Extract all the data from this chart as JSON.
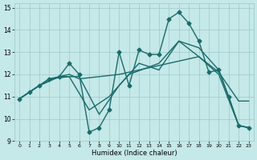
{
  "xlabel": "Humidex (Indice chaleur)",
  "bg_color": "#c5e8e8",
  "grid_color": "#9ec8c8",
  "line_color": "#1a6b6b",
  "line_width": 1.0,
  "marker": "D",
  "marker_size": 2.5,
  "xlim": [
    -0.5,
    23.5
  ],
  "ylim": [
    9.0,
    15.2
  ],
  "yticks": [
    9,
    10,
    11,
    12,
    13,
    14,
    15
  ],
  "xticks": [
    0,
    1,
    2,
    3,
    4,
    5,
    6,
    7,
    8,
    9,
    10,
    11,
    12,
    13,
    14,
    15,
    16,
    17,
    18,
    19,
    20,
    21,
    22,
    23
  ],
  "series": [
    {
      "x": [
        0,
        1,
        2,
        3,
        4,
        5,
        6,
        7,
        8,
        9,
        10,
        11,
        12,
        13,
        14,
        15,
        16,
        17,
        18,
        19,
        20,
        21,
        22,
        23
      ],
      "y": [
        10.9,
        11.2,
        11.5,
        11.8,
        11.9,
        12.5,
        12.0,
        9.4,
        9.6,
        10.4,
        13.0,
        11.5,
        13.1,
        12.9,
        12.9,
        14.5,
        14.8,
        14.3,
        13.5,
        12.1,
        12.2,
        11.0,
        9.7,
        9.6
      ],
      "marker": true
    },
    {
      "x": [
        0,
        3,
        5,
        7,
        9,
        11,
        14,
        16,
        18,
        20,
        22,
        23
      ],
      "y": [
        10.9,
        11.8,
        11.9,
        10.4,
        11.0,
        12.0,
        12.5,
        13.5,
        13.2,
        12.2,
        9.7,
        9.6
      ],
      "marker": false
    },
    {
      "x": [
        0,
        2,
        4,
        6,
        8,
        10,
        12,
        14,
        16,
        18,
        20,
        22,
        23
      ],
      "y": [
        10.9,
        11.5,
        11.9,
        11.9,
        10.2,
        11.5,
        12.5,
        12.2,
        13.5,
        12.8,
        12.0,
        9.7,
        9.6
      ],
      "marker": false
    },
    {
      "x": [
        0,
        2,
        4,
        5,
        6,
        10,
        12,
        14,
        16,
        18,
        20,
        22,
        23
      ],
      "y": [
        10.9,
        11.5,
        11.9,
        12.0,
        11.8,
        12.0,
        12.2,
        12.4,
        12.6,
        12.8,
        12.1,
        10.8,
        10.8
      ],
      "marker": false
    }
  ]
}
